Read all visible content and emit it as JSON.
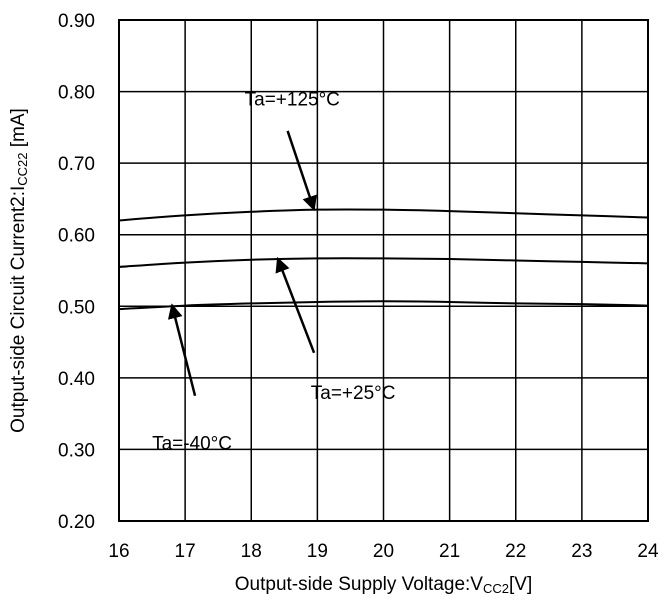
{
  "chart_data": {
    "type": "line",
    "xlabel_main": "Output-side Supply Voltage:V",
    "xlabel_sub": "CC2",
    "xlabel_tail": "[V]",
    "ylabel_main": "Output-side Circuit Current2:I",
    "ylabel_sub": "CC22",
    "ylabel_tail": " [mA]",
    "xlim": [
      16,
      24
    ],
    "ylim": [
      0.2,
      0.9
    ],
    "xticks": [
      "16",
      "17",
      "18",
      "19",
      "20",
      "21",
      "22",
      "23",
      "24"
    ],
    "yticks": [
      "0.20",
      "0.30",
      "0.40",
      "0.50",
      "0.60",
      "0.70",
      "0.80",
      "0.90"
    ],
    "grid": true,
    "series": [
      {
        "x": [
          16,
          17,
          18,
          19,
          20,
          21,
          22,
          23,
          24
        ],
        "y": [
          0.62,
          0.627,
          0.632,
          0.635,
          0.635,
          0.633,
          0.63,
          0.627,
          0.624
        ]
      },
      {
        "x": [
          16,
          17,
          18,
          19,
          20,
          21,
          22,
          23,
          24
        ],
        "y": [
          0.555,
          0.561,
          0.565,
          0.567,
          0.567,
          0.566,
          0.564,
          0.562,
          0.56
        ]
      },
      {
        "x": [
          16,
          17,
          18,
          19,
          20,
          21,
          22,
          23,
          24
        ],
        "y": [
          0.496,
          0.501,
          0.504,
          0.506,
          0.507,
          0.506,
          0.504,
          0.503,
          0.501
        ]
      }
    ],
    "annotations": [
      {
        "text": "Ta=+125°C",
        "x": 17.9,
        "y": 0.79,
        "arrow_from": [
          18.55,
          0.745
        ],
        "arrow_to": [
          18.95,
          0.635
        ]
      },
      {
        "text": "Ta=+25°C",
        "x": 18.9,
        "y": 0.38,
        "arrow_from": [
          18.95,
          0.435
        ],
        "arrow_to": [
          18.4,
          0.567
        ]
      },
      {
        "text": "Ta=-40°C",
        "x": 16.5,
        "y": 0.31,
        "arrow_from": [
          17.15,
          0.375
        ],
        "arrow_to": [
          16.8,
          0.502
        ]
      }
    ]
  }
}
